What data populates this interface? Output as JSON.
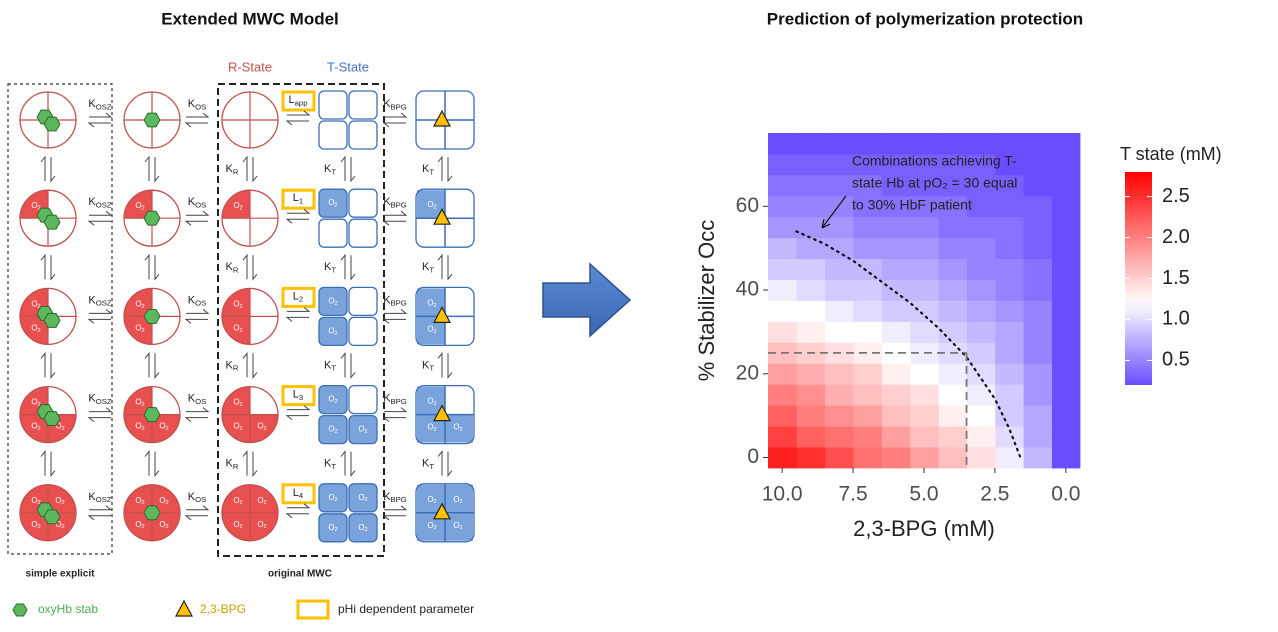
{
  "left_panel": {
    "title": "Extended MWC Model",
    "state_labels": [
      "R-State",
      "T-State"
    ],
    "constants": {
      "k_osz": {
        "main": "K",
        "sub": "OSZ"
      },
      "k_os": {
        "main": "K",
        "sub": "OS"
      },
      "k_bpg": {
        "main": "K",
        "sub": "BPG"
      },
      "k_r": {
        "main": "K",
        "sub": "R"
      },
      "k_t": {
        "main": "K",
        "sub": "T"
      },
      "o2": {
        "main": "O",
        "sub": "2"
      }
    },
    "allosteric_labels": [
      {
        "main": "L",
        "sub": "app"
      },
      {
        "main": "L",
        "sub": "1"
      },
      {
        "main": "L",
        "sub": "2"
      },
      {
        "main": "L",
        "sub": "3"
      },
      {
        "main": "L",
        "sub": "4"
      }
    ],
    "box_labels": [
      "simple explicit",
      "original MWC"
    ],
    "legend": [
      "oxyHb stab",
      "2,3-BPG",
      "pHi dependent parameter"
    ]
  },
  "chart_data": {
    "type": "heatmap",
    "title": "Prediction of polymerization protection",
    "xlabel": "2,3-BPG (mM)",
    "ylabel": "% Stabilizer Occ",
    "x": [
      0,
      1,
      2,
      3,
      4,
      5,
      6,
      7,
      8,
      9,
      10
    ],
    "y": [
      0,
      5,
      10,
      15,
      20,
      25,
      30,
      35,
      40,
      45,
      50,
      55,
      60,
      65,
      70,
      75
    ],
    "values": [
      [
        0.2,
        0.8,
        1.1,
        1.4,
        1.6,
        1.8,
        2.0,
        2.1,
        2.3,
        2.5,
        2.6
      ],
      [
        0.2,
        0.7,
        1.0,
        1.3,
        1.5,
        1.6,
        1.8,
        2.0,
        2.1,
        2.2,
        2.4
      ],
      [
        0.2,
        0.7,
        0.9,
        1.2,
        1.3,
        1.5,
        1.6,
        1.8,
        1.9,
        2.0,
        2.2
      ],
      [
        0.2,
        0.6,
        0.9,
        1.1,
        1.2,
        1.4,
        1.5,
        1.6,
        1.7,
        1.9,
        2.0
      ],
      [
        0.2,
        0.6,
        0.8,
        1.0,
        1.1,
        1.2,
        1.3,
        1.5,
        1.6,
        1.7,
        1.8
      ],
      [
        0.2,
        0.5,
        0.7,
        0.9,
        1.0,
        1.1,
        1.2,
        1.3,
        1.4,
        1.5,
        1.6
      ],
      [
        0.2,
        0.5,
        0.7,
        0.8,
        0.9,
        1.0,
        1.1,
        1.2,
        1.2,
        1.3,
        1.4
      ],
      [
        0.2,
        0.5,
        0.6,
        0.7,
        0.8,
        0.9,
        0.9,
        1.0,
        1.1,
        1.2,
        1.2
      ],
      [
        0.2,
        0.4,
        0.5,
        0.6,
        0.7,
        0.8,
        0.8,
        0.9,
        0.9,
        1.0,
        1.1
      ],
      [
        0.2,
        0.4,
        0.5,
        0.5,
        0.6,
        0.7,
        0.7,
        0.8,
        0.8,
        0.9,
        0.9
      ],
      [
        0.2,
        0.3,
        0.4,
        0.5,
        0.5,
        0.6,
        0.6,
        0.6,
        0.7,
        0.7,
        0.8
      ],
      [
        0.2,
        0.3,
        0.4,
        0.4,
        0.4,
        0.5,
        0.5,
        0.5,
        0.6,
        0.6,
        0.6
      ],
      [
        0.2,
        0.3,
        0.3,
        0.3,
        0.4,
        0.4,
        0.4,
        0.4,
        0.5,
        0.5,
        0.5
      ],
      [
        0.2,
        0.2,
        0.3,
        0.3,
        0.3,
        0.3,
        0.3,
        0.4,
        0.4,
        0.4,
        0.4
      ],
      [
        0.2,
        0.2,
        0.2,
        0.3,
        0.3,
        0.3,
        0.3,
        0.3,
        0.3,
        0.3,
        0.3
      ],
      [
        0.2,
        0.2,
        0.2,
        0.2,
        0.2,
        0.2,
        0.2,
        0.2,
        0.2,
        0.2,
        0.2
      ]
    ],
    "xlim": [
      10.5,
      -0.5
    ],
    "ylim": [
      -2.5,
      77.5
    ],
    "xticks": [
      {
        "value": 10,
        "label": "10.0"
      },
      7.5,
      {
        "value": 5,
        "label": "5.0"
      },
      2.5,
      {
        "value": 0,
        "label": "0.0"
      }
    ],
    "yticks": [
      0,
      20,
      40,
      60
    ],
    "legend_title": "T state (mM)",
    "color_limits": [
      0.2,
      2.8
    ],
    "color_ticks": [
      0.5,
      {
        "value": 1,
        "label": "1.0"
      },
      1.5,
      {
        "value": 2,
        "label": "2.0"
      },
      2.5
    ],
    "color_midpoint": 1.2,
    "colors": {
      "low": "#6b4dff",
      "mid": "#ffffff",
      "high": "#ff0000"
    },
    "annotation": [
      "Combinations achieving T-",
      "state Hb at pO₂ = 30 equal",
      "to 30% HbF patient"
    ],
    "contour": {
      "x": [
        9.5,
        8.5,
        7.5,
        6.5,
        5.5,
        4.5,
        3.5,
        2.5,
        2,
        1.6
      ],
      "y": [
        54,
        51,
        47,
        42,
        37,
        31,
        24,
        14,
        7,
        0
      ]
    },
    "reference": {
      "x": 3.5,
      "y": 25
    }
  }
}
